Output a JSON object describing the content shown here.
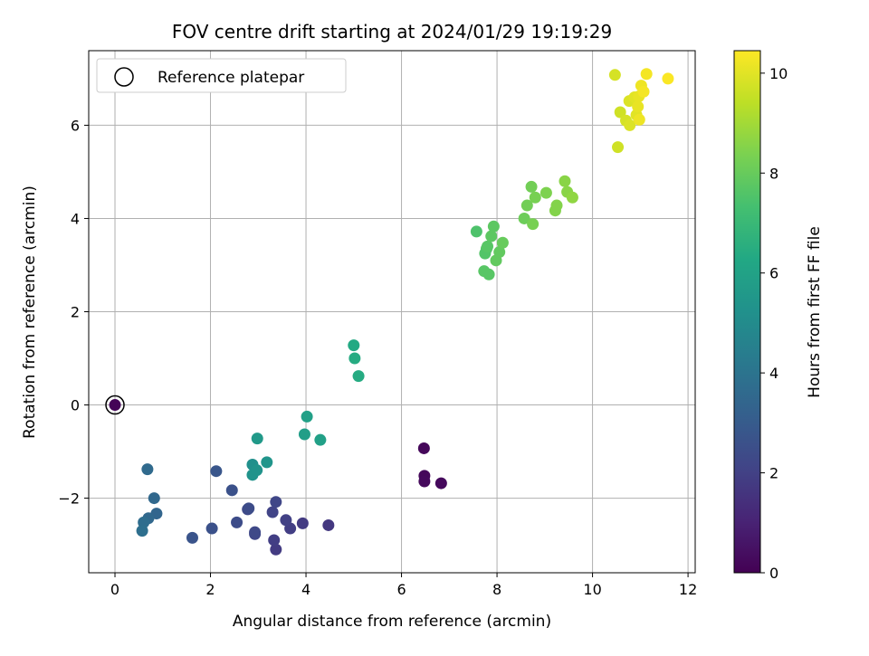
{
  "chart_data": {
    "type": "scatter",
    "title": "FOV centre drift starting at 2024/01/29 19:19:29",
    "xlabel": "Angular distance from reference (arcmin)",
    "ylabel": "Rotation from reference (arcmin)",
    "xlim": [
      -0.55,
      12.15
    ],
    "ylim": [
      -3.6,
      7.6
    ],
    "xticks": [
      0,
      2,
      4,
      6,
      8,
      10,
      12
    ],
    "yticks": [
      -2,
      0,
      2,
      4,
      6
    ],
    "grid": true,
    "legend": {
      "placement": "top-left",
      "entries": [
        "Reference platepar"
      ]
    },
    "colorbar": {
      "label": "Hours from first FF file",
      "colormap": "viridis",
      "range": [
        0,
        10.45
      ],
      "ticks": [
        0,
        2,
        4,
        6,
        8,
        10
      ]
    },
    "reference": {
      "x": 0,
      "y": 0
    },
    "points": [
      {
        "x": 0.0,
        "y": 0.0,
        "h": 0.1
      },
      {
        "x": 6.47,
        "y": -0.93,
        "h": 0.2
      },
      {
        "x": 6.48,
        "y": -1.52,
        "h": 0.2
      },
      {
        "x": 6.48,
        "y": -1.64,
        "h": 0.25
      },
      {
        "x": 6.83,
        "y": -1.68,
        "h": 0.25
      },
      {
        "x": 4.47,
        "y": -2.58,
        "h": 1.7
      },
      {
        "x": 3.93,
        "y": -2.54,
        "h": 1.8
      },
      {
        "x": 3.37,
        "y": -3.1,
        "h": 1.8
      },
      {
        "x": 3.33,
        "y": -2.9,
        "h": 1.9
      },
      {
        "x": 3.67,
        "y": -2.65,
        "h": 1.9
      },
      {
        "x": 3.58,
        "y": -2.47,
        "h": 2.0
      },
      {
        "x": 3.3,
        "y": -2.3,
        "h": 2.1
      },
      {
        "x": 3.37,
        "y": -2.08,
        "h": 2.2
      },
      {
        "x": 2.93,
        "y": -2.77,
        "h": 2.2
      },
      {
        "x": 2.93,
        "y": -2.73,
        "h": 2.3
      },
      {
        "x": 2.78,
        "y": -2.24,
        "h": 2.3
      },
      {
        "x": 2.8,
        "y": -2.22,
        "h": 2.4
      },
      {
        "x": 2.55,
        "y": -2.52,
        "h": 2.4
      },
      {
        "x": 2.45,
        "y": -1.83,
        "h": 2.6
      },
      {
        "x": 2.12,
        "y": -1.42,
        "h": 2.8
      },
      {
        "x": 2.03,
        "y": -2.65,
        "h": 2.6
      },
      {
        "x": 1.62,
        "y": -2.85,
        "h": 2.7
      },
      {
        "x": 0.87,
        "y": -2.33,
        "h": 3.4
      },
      {
        "x": 0.82,
        "y": -2.0,
        "h": 3.5
      },
      {
        "x": 0.7,
        "y": -2.43,
        "h": 3.5
      },
      {
        "x": 0.68,
        "y": -1.38,
        "h": 3.6
      },
      {
        "x": 0.6,
        "y": -2.52,
        "h": 3.7
      },
      {
        "x": 0.57,
        "y": -2.7,
        "h": 3.8
      },
      {
        "x": 2.88,
        "y": -1.28,
        "h": 5.2
      },
      {
        "x": 2.88,
        "y": -1.5,
        "h": 5.3
      },
      {
        "x": 2.97,
        "y": -1.4,
        "h": 5.3
      },
      {
        "x": 3.18,
        "y": -1.23,
        "h": 5.4
      },
      {
        "x": 2.98,
        "y": -0.72,
        "h": 5.6
      },
      {
        "x": 3.97,
        "y": -0.63,
        "h": 5.8
      },
      {
        "x": 4.02,
        "y": -0.25,
        "h": 5.9
      },
      {
        "x": 4.3,
        "y": -0.75,
        "h": 5.9
      },
      {
        "x": 5.0,
        "y": 1.28,
        "h": 6.3
      },
      {
        "x": 5.02,
        "y": 1.0,
        "h": 6.4
      },
      {
        "x": 5.1,
        "y": 0.62,
        "h": 6.4
      },
      {
        "x": 7.57,
        "y": 3.72,
        "h": 7.5
      },
      {
        "x": 7.75,
        "y": 3.25,
        "h": 7.6
      },
      {
        "x": 7.78,
        "y": 3.35,
        "h": 7.6
      },
      {
        "x": 7.8,
        "y": 3.4,
        "h": 7.7
      },
      {
        "x": 7.73,
        "y": 2.87,
        "h": 7.7
      },
      {
        "x": 7.83,
        "y": 2.8,
        "h": 7.7
      },
      {
        "x": 7.88,
        "y": 3.62,
        "h": 7.8
      },
      {
        "x": 7.93,
        "y": 3.83,
        "h": 7.8
      },
      {
        "x": 7.98,
        "y": 3.1,
        "h": 7.9
      },
      {
        "x": 8.05,
        "y": 3.28,
        "h": 7.9
      },
      {
        "x": 8.12,
        "y": 3.48,
        "h": 8.0
      },
      {
        "x": 8.57,
        "y": 4.0,
        "h": 8.1
      },
      {
        "x": 8.63,
        "y": 4.28,
        "h": 8.2
      },
      {
        "x": 8.72,
        "y": 4.68,
        "h": 8.2
      },
      {
        "x": 8.75,
        "y": 3.88,
        "h": 8.3
      },
      {
        "x": 8.8,
        "y": 4.45,
        "h": 8.3
      },
      {
        "x": 9.03,
        "y": 4.55,
        "h": 8.4
      },
      {
        "x": 9.22,
        "y": 4.17,
        "h": 8.5
      },
      {
        "x": 9.25,
        "y": 4.28,
        "h": 8.5
      },
      {
        "x": 9.42,
        "y": 4.8,
        "h": 8.6
      },
      {
        "x": 9.47,
        "y": 4.57,
        "h": 8.6
      },
      {
        "x": 9.58,
        "y": 4.45,
        "h": 8.7
      },
      {
        "x": 10.47,
        "y": 7.08,
        "h": 9.8
      },
      {
        "x": 10.53,
        "y": 5.53,
        "h": 9.7
      },
      {
        "x": 10.58,
        "y": 6.28,
        "h": 9.7
      },
      {
        "x": 10.7,
        "y": 6.1,
        "h": 9.8
      },
      {
        "x": 10.77,
        "y": 6.52,
        "h": 9.9
      },
      {
        "x": 10.78,
        "y": 6.0,
        "h": 9.9
      },
      {
        "x": 10.88,
        "y": 6.6,
        "h": 10.0
      },
      {
        "x": 10.92,
        "y": 6.22,
        "h": 10.0
      },
      {
        "x": 10.95,
        "y": 6.4,
        "h": 10.1
      },
      {
        "x": 10.97,
        "y": 6.62,
        "h": 10.1
      },
      {
        "x": 10.98,
        "y": 6.12,
        "h": 10.2
      },
      {
        "x": 11.02,
        "y": 6.85,
        "h": 10.2
      },
      {
        "x": 11.07,
        "y": 6.72,
        "h": 10.3
      },
      {
        "x": 11.13,
        "y": 7.1,
        "h": 10.3
      },
      {
        "x": 11.58,
        "y": 7.0,
        "h": 10.4
      }
    ]
  }
}
